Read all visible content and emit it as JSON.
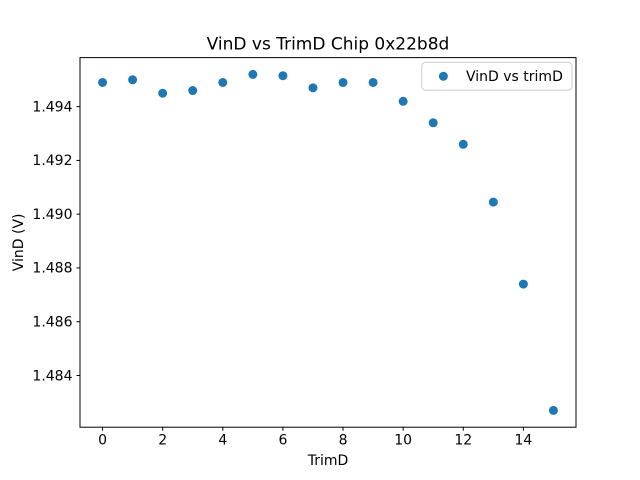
{
  "chart_data": {
    "type": "scatter",
    "title": "VinD vs TrimD Chip 0x22b8d",
    "xlabel": "TrimD",
    "ylabel": "VinD (V)",
    "legend": [
      "VinD vs trimD"
    ],
    "legend_position": "upper right",
    "grid": false,
    "marker_color": "#1f77b4",
    "background_color": "#ffffff",
    "x": [
      0,
      1,
      2,
      3,
      4,
      5,
      6,
      7,
      8,
      9,
      10,
      11,
      12,
      13,
      14,
      15
    ],
    "y": [
      1.4949,
      1.495,
      1.4945,
      1.4946,
      1.4949,
      1.4952,
      1.49515,
      1.4947,
      1.4949,
      1.4949,
      1.4942,
      1.4934,
      1.4926,
      1.49045,
      1.4874,
      1.4827
    ],
    "xlim": [
      -0.75,
      15.75
    ],
    "ylim": [
      1.482075,
      1.495825
    ],
    "x_ticks": [
      0,
      2,
      4,
      6,
      8,
      10,
      12,
      14
    ],
    "x_tick_labels": [
      "0",
      "2",
      "4",
      "6",
      "8",
      "10",
      "12",
      "14"
    ],
    "y_ticks": [
      1.484,
      1.486,
      1.488,
      1.49,
      1.492,
      1.494
    ],
    "y_tick_labels": [
      "1.484",
      "1.486",
      "1.488",
      "1.490",
      "1.492",
      "1.494"
    ]
  }
}
